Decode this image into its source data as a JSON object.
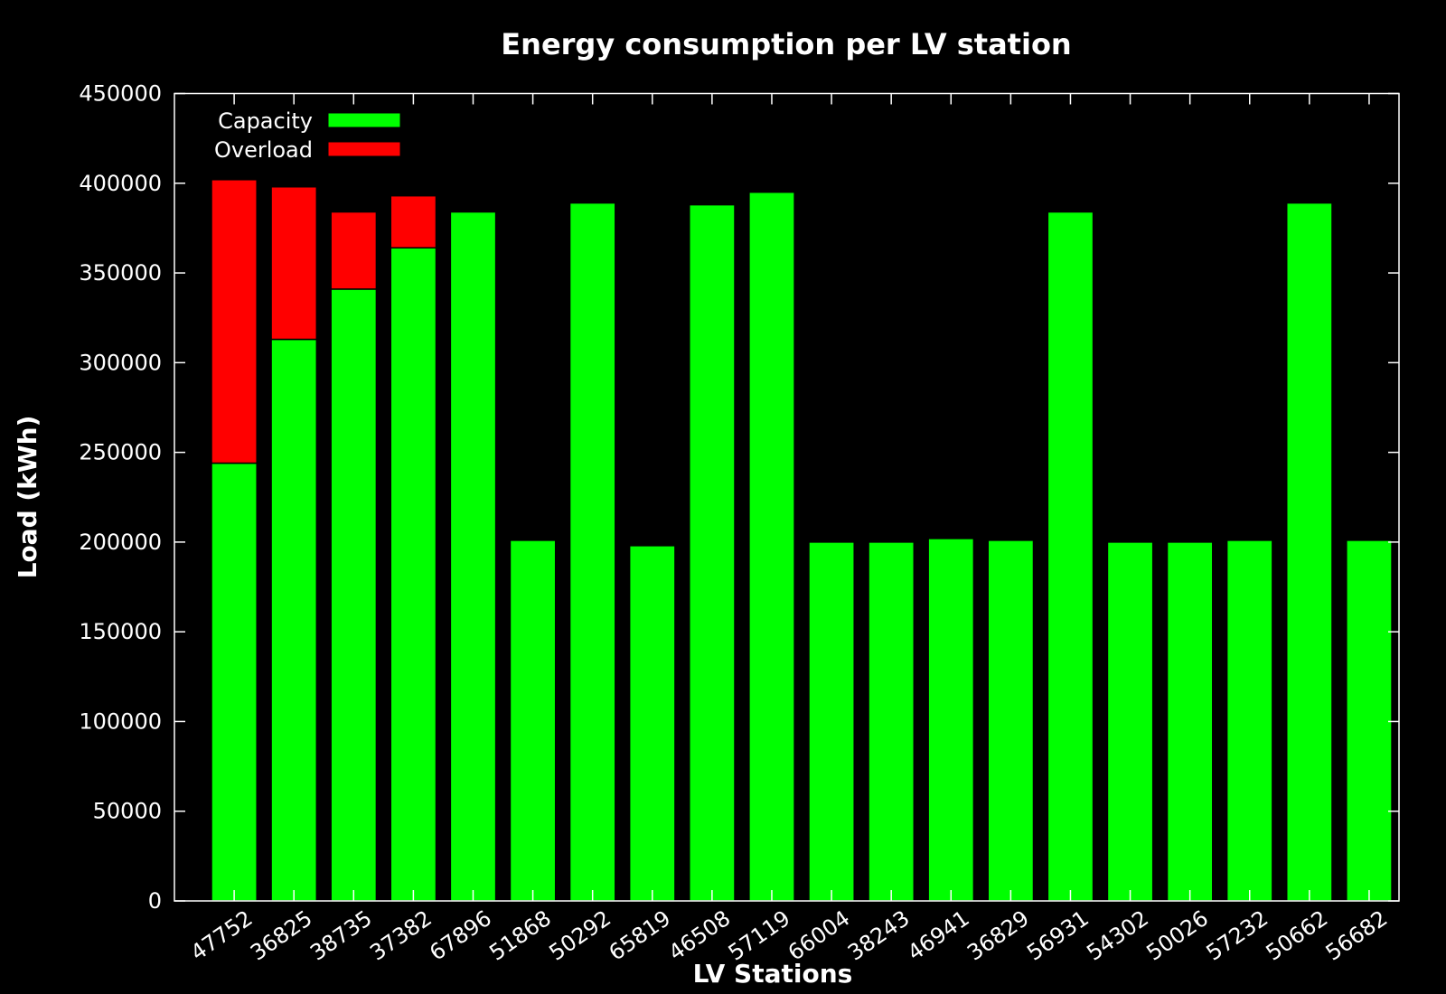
{
  "chart_data": {
    "type": "bar",
    "stacked": true,
    "title": "Energy consumption per LV station",
    "xlabel": "LV Stations",
    "ylabel": "Load (kWh)",
    "ylim": [
      0,
      450000
    ],
    "yticks": [
      "0",
      "50000",
      "100000",
      "150000",
      "200000",
      "250000",
      "300000",
      "350000",
      "400000",
      "450000"
    ],
    "categories": [
      "47752",
      "36825",
      "38735",
      "37382",
      "67896",
      "51868",
      "50292",
      "65819",
      "46508",
      "57119",
      "66004",
      "38243",
      "46941",
      "36829",
      "56931",
      "54302",
      "50026",
      "57232",
      "50662",
      "56682"
    ],
    "series": [
      {
        "name": "Capacity",
        "color": "#00ff00",
        "values": [
          244000,
          313000,
          341000,
          364000,
          384000,
          201000,
          389000,
          198000,
          388000,
          395000,
          200000,
          200000,
          202000,
          201000,
          384000,
          200000,
          200000,
          201000,
          389000,
          201000
        ]
      },
      {
        "name": "Overload",
        "color": "#ff0000",
        "values": [
          158000,
          85000,
          43000,
          29000,
          0,
          0,
          0,
          0,
          0,
          0,
          0,
          0,
          0,
          0,
          0,
          0,
          0,
          0,
          0,
          0
        ]
      }
    ],
    "legend_position": "top-left",
    "grid": false,
    "background": "#000000",
    "foreground": "#ffffff"
  }
}
